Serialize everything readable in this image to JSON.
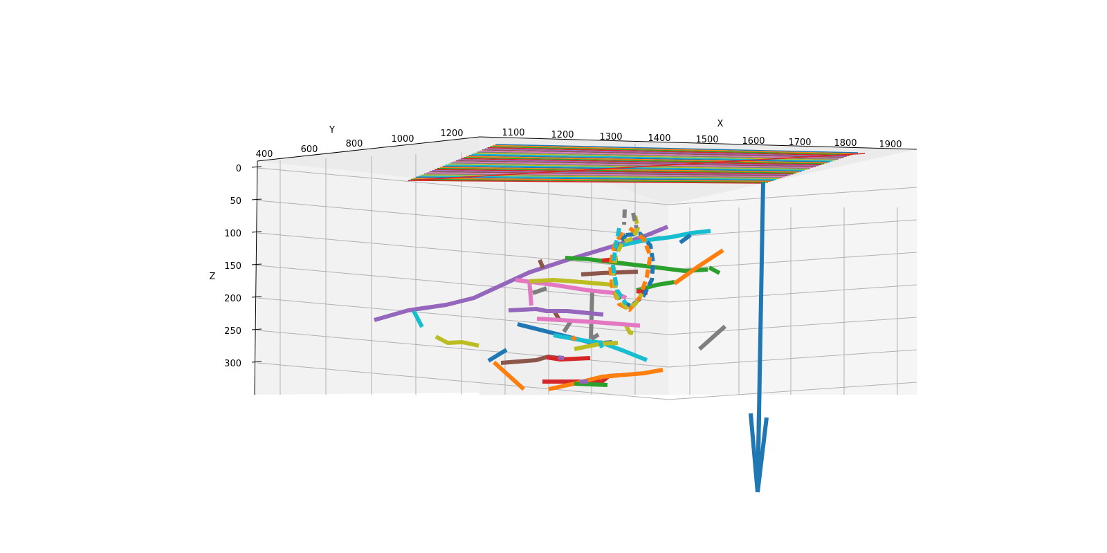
{
  "chart_data": {
    "type": "line3d",
    "title": "",
    "xlabel": "X",
    "ylabel": "Y",
    "zlabel": "Z",
    "x_ticks": [
      "1100",
      "1200",
      "1300",
      "1400",
      "1500",
      "1600",
      "1700",
      "1800",
      "1900"
    ],
    "y_ticks": [
      "400",
      "600",
      "800",
      "1000",
      "1200"
    ],
    "z_ticks": [
      "0",
      "50",
      "100",
      "150",
      "200",
      "250",
      "300"
    ],
    "zlim": [
      0,
      350
    ],
    "z_inverted": true,
    "grid": true,
    "colors": [
      "#1f77b4",
      "#ff7f0e",
      "#2ca02c",
      "#d62728",
      "#9467bd",
      "#8c564b",
      "#e377c2",
      "#7f7f7f",
      "#bcbd22",
      "#17becf"
    ]
  }
}
